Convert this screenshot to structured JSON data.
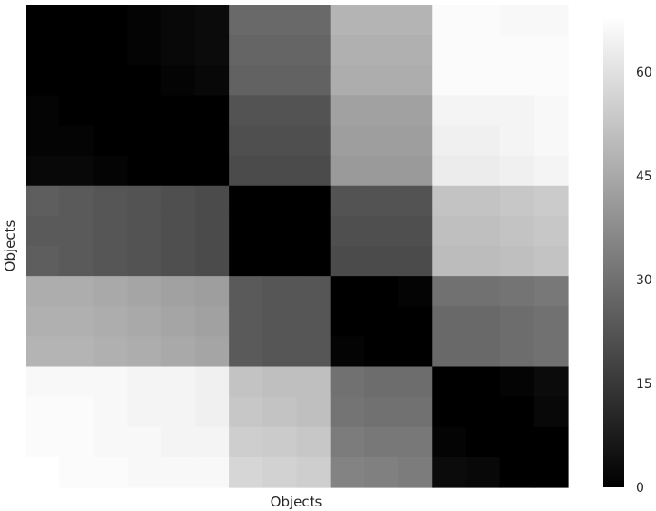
{
  "chart_data": {
    "type": "heatmap",
    "xlabel": "Objects",
    "ylabel": "Objects",
    "colormap": "gray",
    "color_range": [
      0,
      68
    ],
    "colorbar_ticks": [
      "0",
      "15",
      "30",
      "45",
      "60"
    ],
    "grid": false,
    "legend": "colorbar-right",
    "rows": 16,
    "cols": 16,
    "values": [
      [
        0,
        0,
        0,
        1,
        2,
        3,
        28,
        28,
        28,
        48,
        48,
        48,
        67,
        67,
        66,
        66
      ],
      [
        0,
        0,
        0,
        1,
        2,
        3,
        27,
        27,
        27,
        47,
        47,
        47,
        67,
        67,
        67,
        67
      ],
      [
        0,
        0,
        0,
        0,
        1,
        2,
        26,
        26,
        26,
        46,
        46,
        46,
        67,
        67,
        67,
        67
      ],
      [
        1,
        0,
        0,
        0,
        0,
        0,
        22,
        22,
        22,
        43,
        43,
        43,
        65,
        65,
        65,
        66
      ],
      [
        1,
        1,
        0,
        0,
        0,
        0,
        21,
        21,
        21,
        42,
        42,
        42,
        64,
        64,
        65,
        66
      ],
      [
        2,
        2,
        1,
        0,
        0,
        0,
        20,
        20,
        20,
        41,
        41,
        41,
        63,
        63,
        64,
        65
      ],
      [
        25,
        24,
        23,
        22,
        21,
        20,
        0,
        0,
        0,
        22,
        22,
        22,
        52,
        52,
        53,
        54
      ],
      [
        24,
        24,
        23,
        22,
        21,
        20,
        0,
        0,
        0,
        21,
        21,
        21,
        51,
        51,
        52,
        53
      ],
      [
        25,
        24,
        23,
        22,
        21,
        20,
        0,
        0,
        0,
        20,
        20,
        20,
        50,
        50,
        51,
        52
      ],
      [
        46,
        46,
        45,
        44,
        43,
        42,
        24,
        23,
        23,
        0,
        0,
        1,
        30,
        30,
        31,
        32
      ],
      [
        47,
        47,
        46,
        45,
        44,
        43,
        24,
        23,
        23,
        0,
        0,
        0,
        28,
        28,
        29,
        30
      ],
      [
        48,
        48,
        47,
        46,
        45,
        44,
        24,
        23,
        23,
        1,
        0,
        0,
        28,
        28,
        29,
        30
      ],
      [
        66,
        66,
        66,
        65,
        65,
        64,
        52,
        51,
        51,
        30,
        29,
        29,
        0,
        0,
        1,
        3
      ],
      [
        67,
        67,
        66,
        65,
        65,
        64,
        53,
        52,
        51,
        31,
        30,
        30,
        0,
        0,
        0,
        2
      ],
      [
        67,
        67,
        66,
        66,
        65,
        65,
        55,
        54,
        53,
        33,
        32,
        32,
        1,
        0,
        0,
        0
      ],
      [
        68,
        67,
        67,
        66,
        66,
        66,
        57,
        56,
        55,
        35,
        34,
        33,
        3,
        2,
        0,
        0
      ]
    ]
  }
}
